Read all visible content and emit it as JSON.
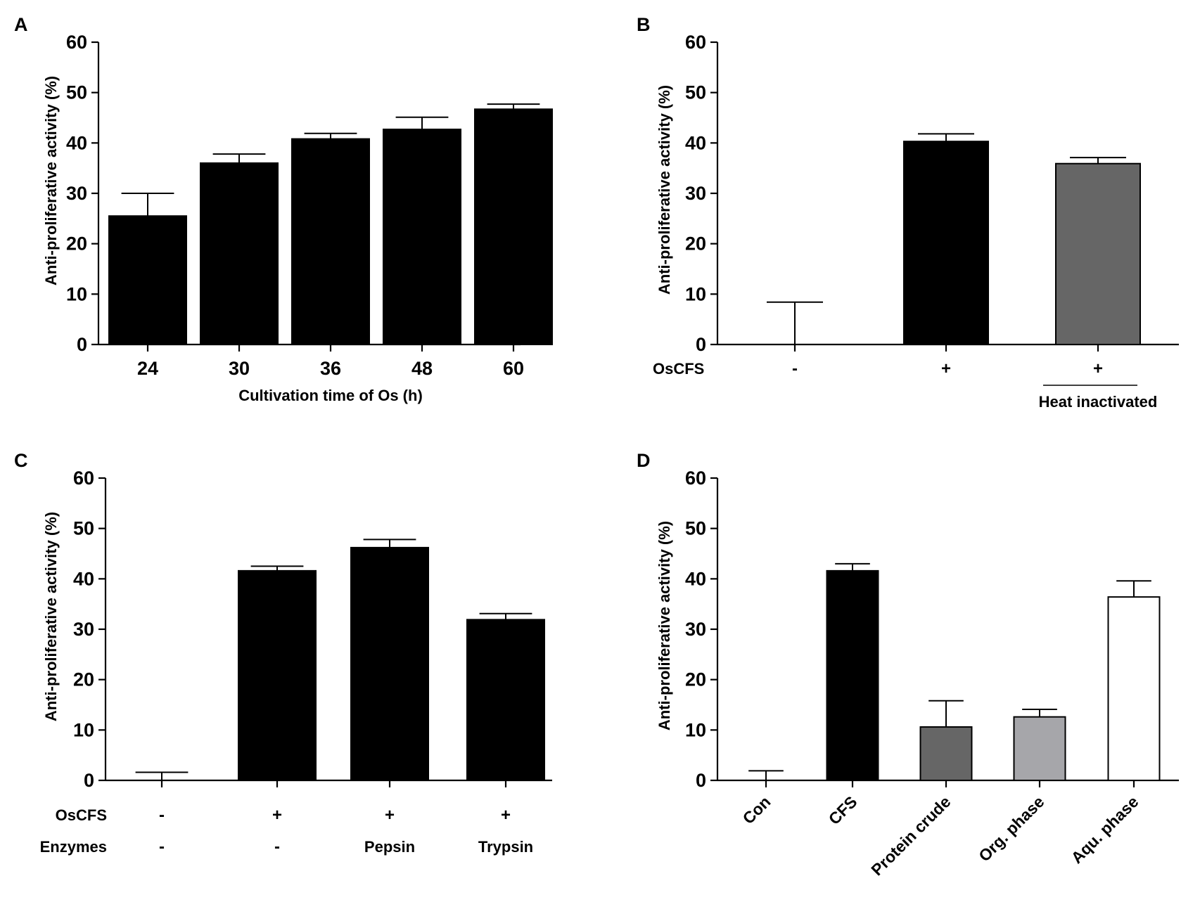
{
  "figure": {
    "colors": {
      "black": "#000000",
      "dark_gray": "#666666",
      "light_gray": "#a6a6aa",
      "white": "#ffffff"
    }
  },
  "chart_data": [
    {
      "panel": "A",
      "type": "bar",
      "ylabel": "Anti-proliferative activity (%)",
      "xlabel": "Cultivation time of Os (h)",
      "ylim": [
        0,
        60
      ],
      "yticks": [
        "0",
        "10",
        "20",
        "30",
        "40",
        "50",
        "60"
      ],
      "categories": [
        "24",
        "30",
        "36",
        "48",
        "60"
      ],
      "values": [
        25.5,
        36.0,
        40.8,
        42.7,
        46.7
      ],
      "errors": [
        4.5,
        1.8,
        1.1,
        2.4,
        1.0
      ],
      "fills": [
        "#000000",
        "#000000",
        "#000000",
        "#000000",
        "#000000"
      ]
    },
    {
      "panel": "B",
      "type": "bar",
      "ylabel": "Anti-proliferative activity (%)",
      "ylim": [
        0,
        60
      ],
      "yticks": [
        "0",
        "10",
        "20",
        "30",
        "40",
        "50",
        "60"
      ],
      "row_labels": [
        "OsCFS"
      ],
      "rows": [
        [
          "-",
          "+",
          "+"
        ]
      ],
      "bracket_label": "Heat inactivated",
      "values": [
        0,
        40.3,
        35.9
      ],
      "errors": [
        8.4,
        1.5,
        1.2
      ],
      "fills": [
        "#000000",
        "#000000",
        "#666666"
      ]
    },
    {
      "panel": "C",
      "type": "bar",
      "ylabel": "Anti-proliferative activity (%)",
      "ylim": [
        0,
        60
      ],
      "yticks": [
        "0",
        "10",
        "20",
        "30",
        "40",
        "50",
        "60"
      ],
      "row_labels": [
        "OsCFS",
        "Enzymes"
      ],
      "rows": [
        [
          "-",
          "+",
          "+",
          "+"
        ],
        [
          "-",
          "-",
          "Pepsin",
          "Trypsin"
        ]
      ],
      "values": [
        0,
        41.6,
        46.2,
        31.9
      ],
      "errors": [
        1.6,
        0.9,
        1.6,
        1.2
      ],
      "fills": [
        "#000000",
        "#000000",
        "#000000",
        "#000000"
      ]
    },
    {
      "panel": "D",
      "type": "bar",
      "ylabel": "Anti-proliferative activity (%)",
      "ylim": [
        0,
        60
      ],
      "yticks": [
        "0",
        "10",
        "20",
        "30",
        "40",
        "50",
        "60"
      ],
      "categories": [
        "Con",
        "CFS",
        "Protein crude",
        "Org. phase",
        "Aqu. phase"
      ],
      "values": [
        0,
        41.6,
        10.6,
        12.6,
        36.4
      ],
      "errors": [
        1.9,
        1.4,
        5.2,
        1.5,
        3.2
      ],
      "fills": [
        "#000000",
        "#000000",
        "#666666",
        "#a6a6aa",
        "#ffffff"
      ]
    }
  ]
}
